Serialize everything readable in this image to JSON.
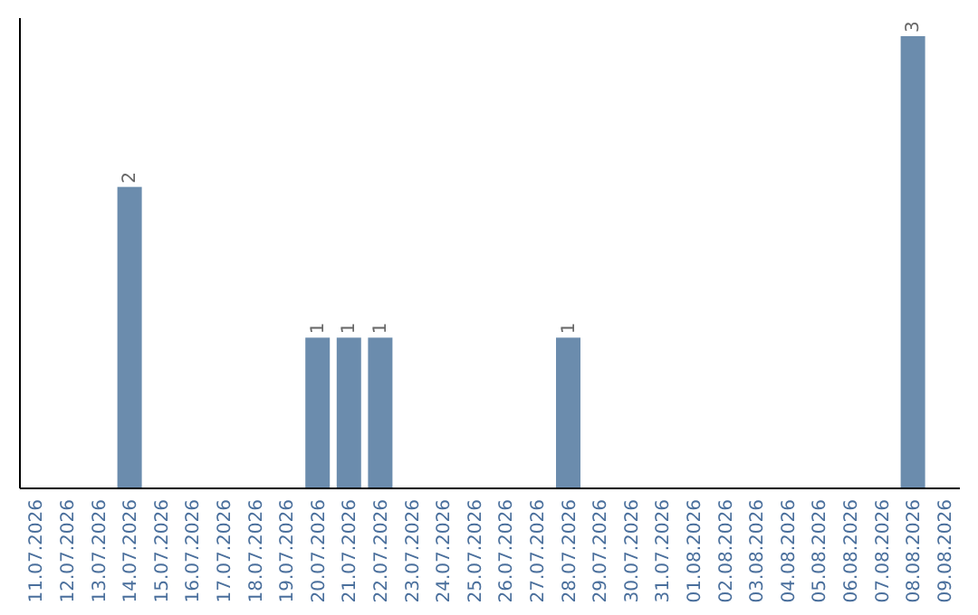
{
  "chart_data": {
    "type": "bar",
    "categories": [
      "11.07.2026",
      "12.07.2026",
      "13.07.2026",
      "14.07.2026",
      "15.07.2026",
      "16.07.2026",
      "17.07.2026",
      "18.07.2026",
      "19.07.2026",
      "20.07.2026",
      "21.07.2026",
      "22.07.2026",
      "23.07.2026",
      "24.07.2026",
      "25.07.2026",
      "26.07.2026",
      "27.07.2026",
      "28.07.2026",
      "29.07.2026",
      "30.07.2026",
      "31.07.2026",
      "01.08.2026",
      "02.08.2026",
      "03.08.2026",
      "04.08.2026",
      "05.08.2026",
      "06.08.2026",
      "07.08.2026",
      "08.08.2026",
      "09.08.2026"
    ],
    "values": [
      0,
      0,
      0,
      2,
      0,
      0,
      0,
      0,
      0,
      1,
      1,
      1,
      0,
      0,
      0,
      0,
      0,
      1,
      0,
      0,
      0,
      0,
      0,
      0,
      0,
      0,
      0,
      0,
      3,
      0
    ],
    "value_labels": [
      null,
      null,
      null,
      "2",
      null,
      null,
      null,
      null,
      null,
      "1",
      "1",
      "1",
      null,
      null,
      null,
      null,
      null,
      "1",
      null,
      null,
      null,
      null,
      null,
      null,
      null,
      null,
      null,
      null,
      "3",
      null
    ],
    "color": "#6b8cad"
  }
}
